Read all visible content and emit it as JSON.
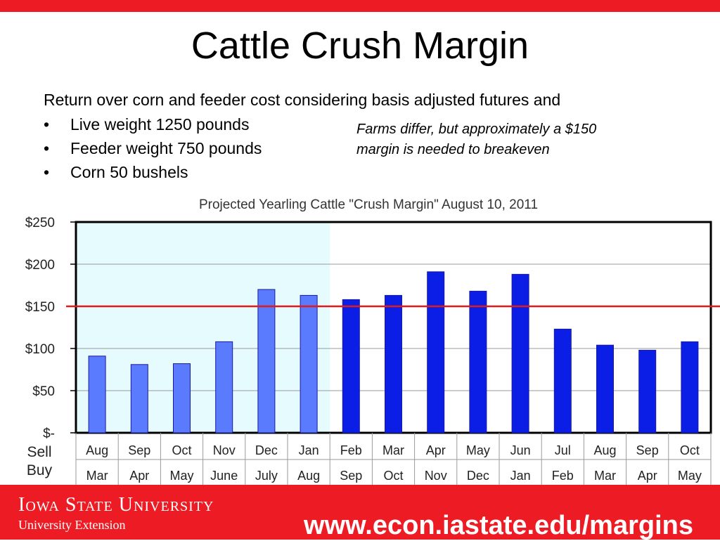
{
  "colors": {
    "brand_red": "#ed1c24",
    "shade": "#e6fbfd",
    "bar_light": "#5b7bff",
    "bar_dark": "#0a1ee6",
    "breakeven_line": "#e01b1b",
    "plot_border": "#000000"
  },
  "slide": {
    "title": "Cattle Crush Margin",
    "intro": "Return over corn and feeder cost considering basis adjusted futures and",
    "bullet_glyph": "•",
    "bullets": [
      "Live weight 1250 pounds",
      "Feeder weight 750 pounds",
      "Corn 50 bushels"
    ],
    "note_line1": "Farms differ, but approximately a $150",
    "note_line2": "margin is needed to breakeven"
  },
  "footer": {
    "logo_line1": "Iowa State University",
    "logo_line2": "University Extension",
    "url": "www.econ.iastate.edu/margins"
  },
  "chart_data": {
    "type": "bar",
    "title": "Projected Yearling Cattle \"Crush Margin\" August 10, 2011",
    "row_labels": [
      "Sell",
      "Buy"
    ],
    "sell_months": [
      "Aug",
      "Sep",
      "Oct",
      "Nov",
      "Dec",
      "Jan",
      "Feb",
      "Mar",
      "Apr",
      "May",
      "Jun",
      "Jul",
      "Aug",
      "Sep",
      "Oct"
    ],
    "buy_months": [
      "Mar",
      "Apr",
      "May",
      "June",
      "July",
      "Aug",
      "Sep",
      "Oct",
      "Nov",
      "Dec",
      "Jan",
      "Feb",
      "Mar",
      "Apr",
      "May"
    ],
    "values": [
      91,
      81,
      82,
      108,
      170,
      163,
      158,
      163,
      191,
      168,
      188,
      123,
      104,
      98,
      108
    ],
    "shaded_count": 6,
    "ylim": [
      0,
      250
    ],
    "yticks": [
      0,
      50,
      100,
      150,
      200,
      250
    ],
    "ytick_labels": [
      "$-",
      "$50",
      "$100",
      "$150",
      "$200",
      "$250"
    ],
    "reference_line": 150,
    "grid": true
  }
}
